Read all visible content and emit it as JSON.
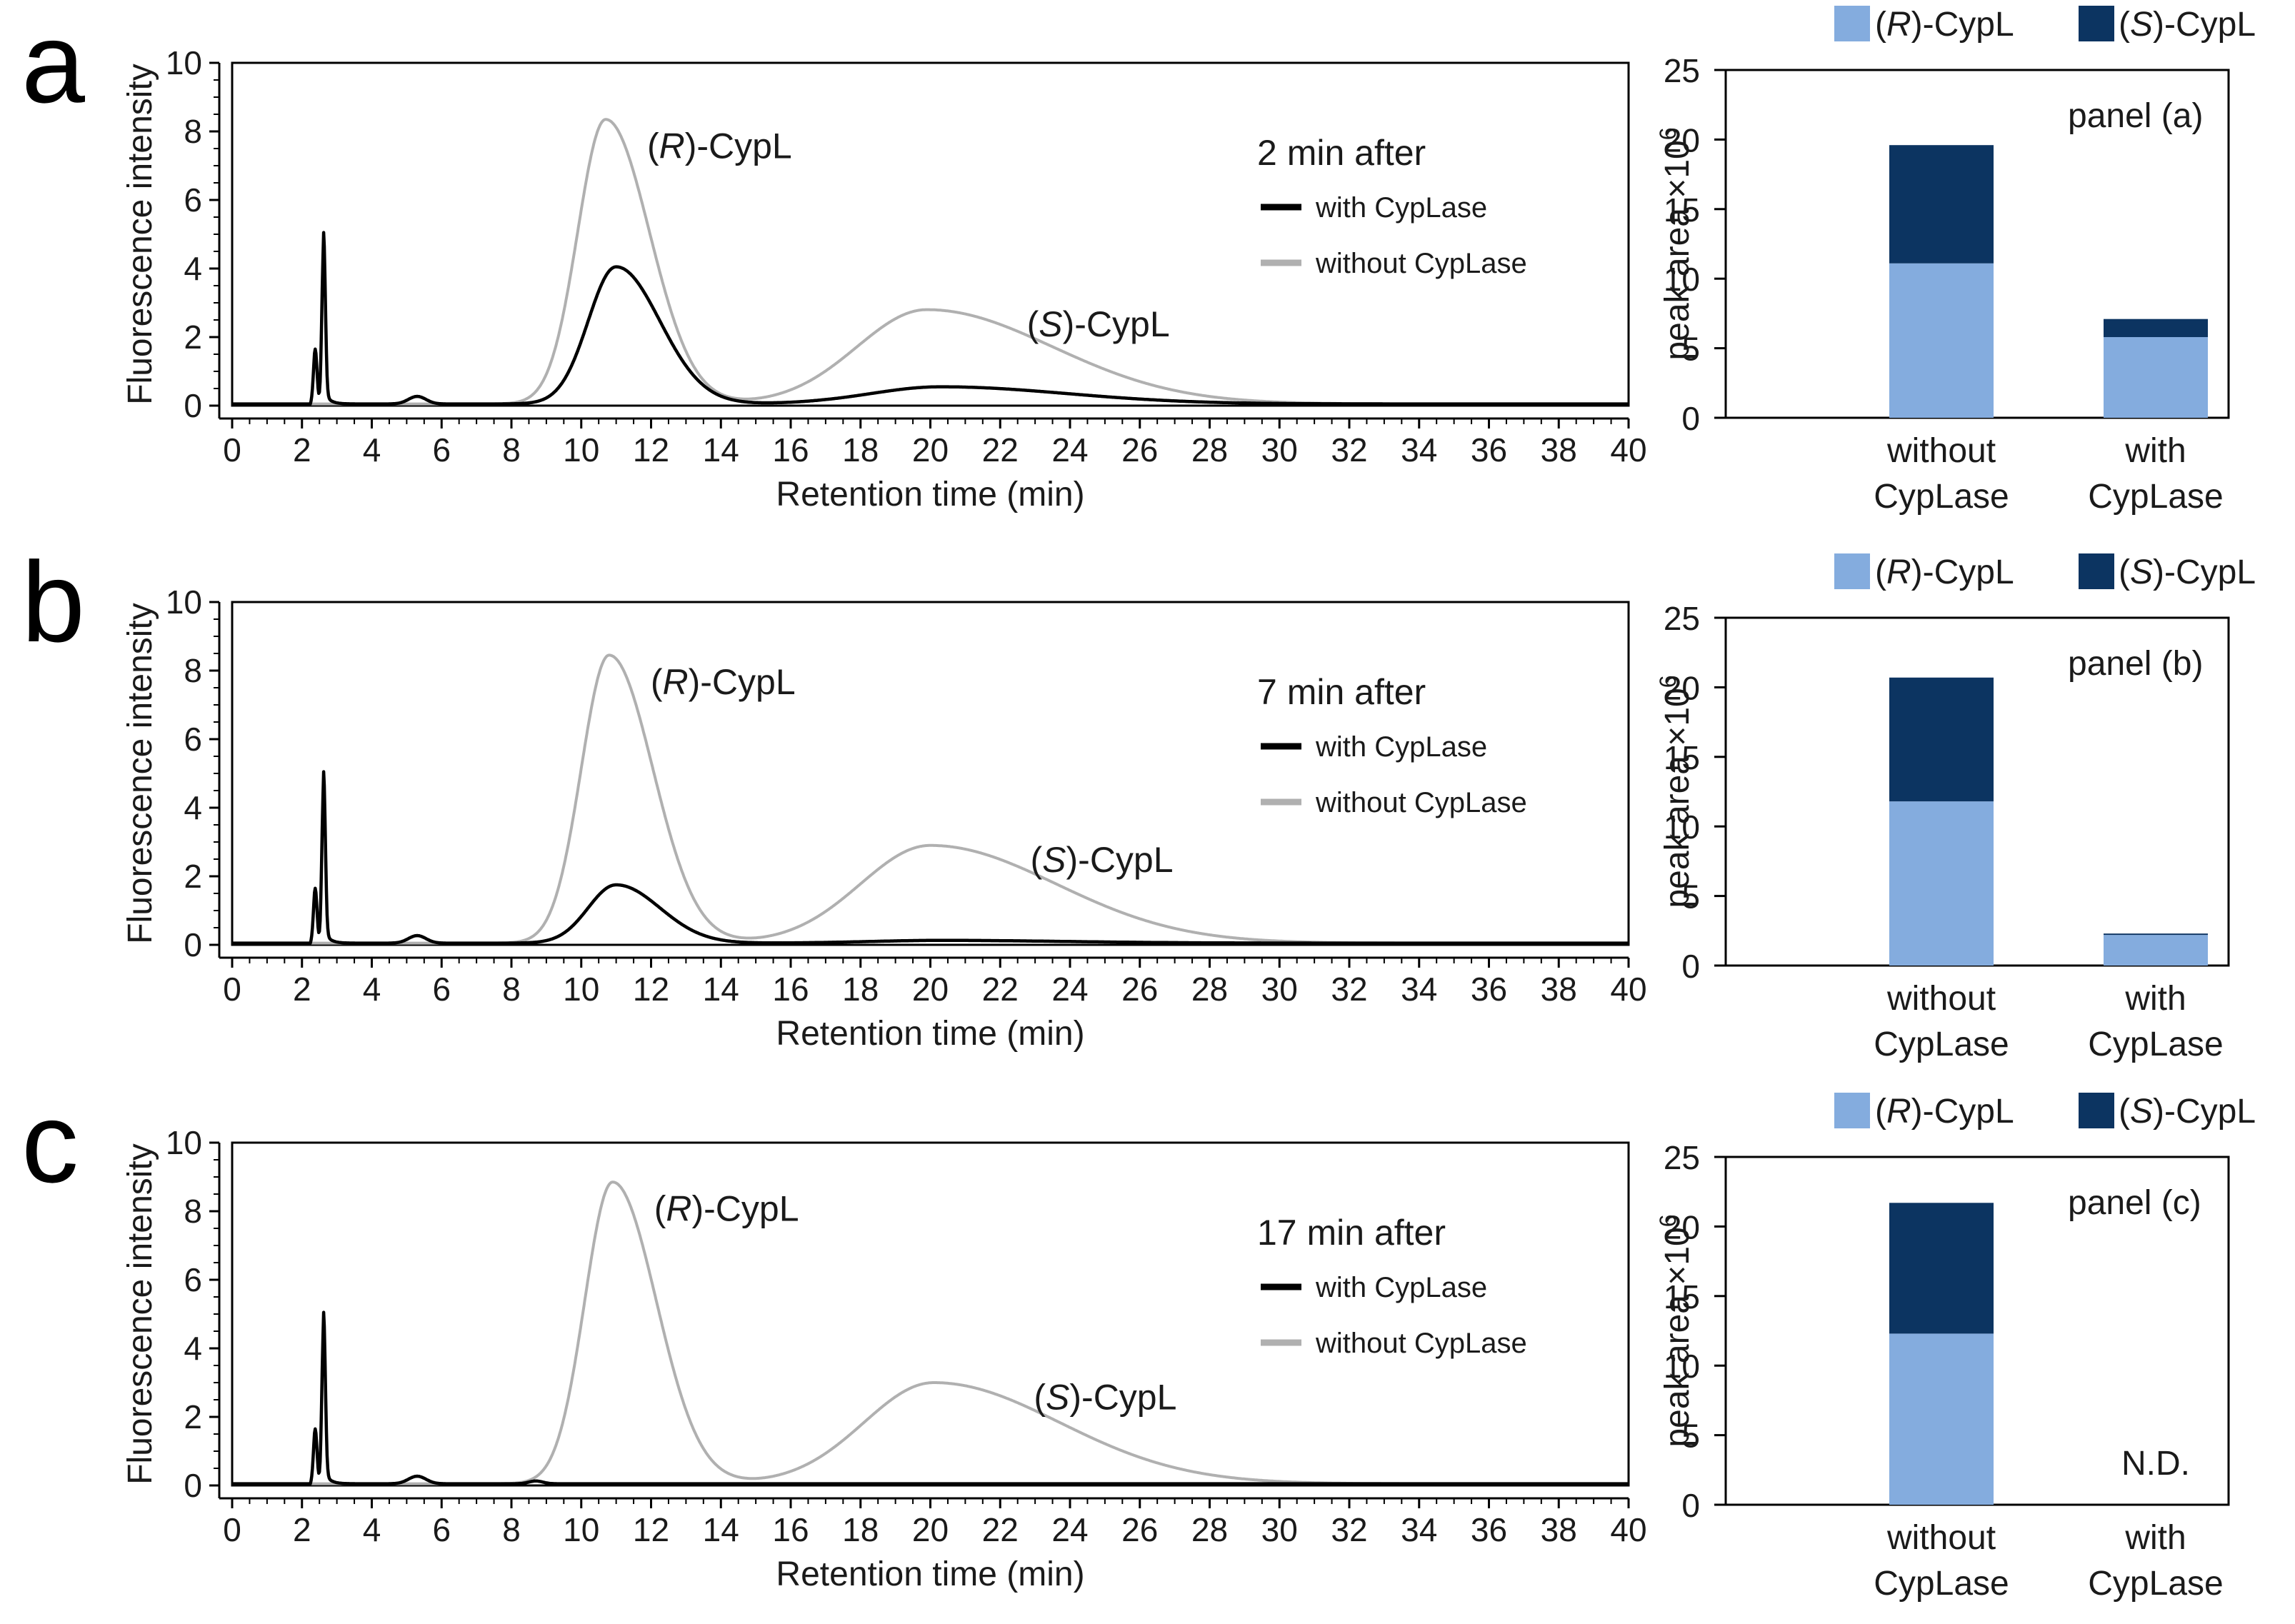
{
  "chromatograms": [
    {
      "letter": "a",
      "condition": "2 min after",
      "r_label": "(R)-CypL",
      "s_label": "(S)-CypL",
      "with_peak_r": 4.0,
      "with_peak_s": 0.5
    },
    {
      "letter": "b",
      "condition": "7 min after",
      "r_label": "(R)-CypL",
      "s_label": "(S)-CypL",
      "with_peak_r": 1.7,
      "with_peak_s": 0.08
    },
    {
      "letter": "c",
      "condition": "17 min after",
      "r_label": "(R)-CypL",
      "s_label": "(S)-CypL",
      "with_peak_r": 0.0,
      "with_peak_s": 0.0
    }
  ],
  "bar_panels": [
    {
      "tag": "panel (a)",
      "nd_label": ""
    },
    {
      "tag": "panel (b)",
      "nd_label": ""
    },
    {
      "tag": "panel (c)",
      "nd_label": "N.D."
    }
  ],
  "chart_data": [
    {
      "type": "line",
      "panel": "a",
      "title": "2 min after",
      "xlabel": "Retention time (min)",
      "ylabel": "Fluorescence intensity",
      "xlim": [
        0,
        40
      ],
      "ylim": [
        0,
        10
      ],
      "x_ticks": [
        0,
        2,
        4,
        6,
        8,
        10,
        12,
        14,
        16,
        18,
        20,
        22,
        24,
        26,
        28,
        30,
        32,
        34,
        36,
        38,
        40
      ],
      "y_ticks": [
        0,
        2,
        4,
        6,
        8,
        10
      ],
      "series": [
        {
          "name": "with CypLase",
          "color": "#000000",
          "peaks": [
            {
              "x": 11.0,
              "y": 4.0
            },
            {
              "x": 20.3,
              "y": 0.5
            }
          ]
        },
        {
          "name": "without CypLase",
          "color": "#b0b0b0",
          "peaks": [
            {
              "x": 10.7,
              "y": 8.3
            },
            {
              "x": 19.9,
              "y": 2.75
            }
          ]
        }
      ],
      "annotations": [
        "(R)-CypL",
        "(S)-CypL"
      ]
    },
    {
      "type": "line",
      "panel": "b",
      "title": "7 min after",
      "xlabel": "Retention time (min)",
      "ylabel": "Fluorescence intensity",
      "xlim": [
        0,
        40
      ],
      "ylim": [
        0,
        10
      ],
      "x_ticks": [
        0,
        2,
        4,
        6,
        8,
        10,
        12,
        14,
        16,
        18,
        20,
        22,
        24,
        26,
        28,
        30,
        32,
        34,
        36,
        38,
        40
      ],
      "y_ticks": [
        0,
        2,
        4,
        6,
        8,
        10
      ],
      "series": [
        {
          "name": "with CypLase",
          "color": "#000000",
          "peaks": [
            {
              "x": 11.0,
              "y": 1.7
            },
            {
              "x": 20.3,
              "y": 0.08
            }
          ]
        },
        {
          "name": "without CypLase",
          "color": "#b0b0b0",
          "peaks": [
            {
              "x": 10.8,
              "y": 8.4
            },
            {
              "x": 20.0,
              "y": 2.85
            }
          ]
        }
      ],
      "annotations": [
        "(R)-CypL",
        "(S)-CypL"
      ]
    },
    {
      "type": "line",
      "panel": "c",
      "title": "17 min after",
      "xlabel": "Retention time (min)",
      "ylabel": "Fluorescence intensity",
      "xlim": [
        0,
        40
      ],
      "ylim": [
        0,
        10
      ],
      "x_ticks": [
        0,
        2,
        4,
        6,
        8,
        10,
        12,
        14,
        16,
        18,
        20,
        22,
        24,
        26,
        28,
        30,
        32,
        34,
        36,
        38,
        40
      ],
      "y_ticks": [
        0,
        2,
        4,
        6,
        8,
        10
      ],
      "series": [
        {
          "name": "with CypLase",
          "color": "#000000",
          "peaks": []
        },
        {
          "name": "without CypLase",
          "color": "#b0b0b0",
          "peaks": [
            {
              "x": 10.9,
              "y": 8.8
            },
            {
              "x": 20.1,
              "y": 2.95
            }
          ]
        }
      ],
      "annotations": [
        "(R)-CypL",
        "(S)-CypL"
      ]
    },
    {
      "type": "bar",
      "stacked": true,
      "panel": "a",
      "title": "panel (a)",
      "ylabel": "peak area ×10^6",
      "ylim": [
        0,
        25
      ],
      "y_ticks": [
        0,
        5,
        10,
        15,
        20,
        25
      ],
      "categories": [
        "without CypLase",
        "with CypLase"
      ],
      "series": [
        {
          "name": "(R)-CypL",
          "color": "#84acde",
          "values": [
            11.1,
            5.8
          ]
        },
        {
          "name": "(S)-CypL",
          "color": "#0c3461",
          "values": [
            8.5,
            1.3
          ]
        }
      ]
    },
    {
      "type": "bar",
      "stacked": true,
      "panel": "b",
      "title": "panel (b)",
      "ylabel": "peak area ×10^6",
      "ylim": [
        0,
        25
      ],
      "y_ticks": [
        0,
        5,
        10,
        15,
        20,
        25
      ],
      "categories": [
        "without CypLase",
        "with CypLase"
      ],
      "series": [
        {
          "name": "(R)-CypL",
          "color": "#84acde",
          "values": [
            11.8,
            2.2
          ]
        },
        {
          "name": "(S)-CypL",
          "color": "#0c3461",
          "values": [
            8.9,
            0.1
          ]
        }
      ]
    },
    {
      "type": "bar",
      "stacked": true,
      "panel": "c",
      "title": "panel (c)",
      "ylabel": "peak area ×10^6",
      "ylim": [
        0,
        25
      ],
      "y_ticks": [
        0,
        5,
        10,
        15,
        20,
        25
      ],
      "categories": [
        "without CypLase",
        "with CypLase"
      ],
      "series": [
        {
          "name": "(R)-CypL",
          "color": "#84acde",
          "values": [
            12.3,
            0
          ]
        },
        {
          "name": "(S)-CypL",
          "color": "#0c3461",
          "values": [
            9.4,
            0
          ]
        }
      ],
      "annotations": [
        "N.D."
      ]
    }
  ],
  "labels": {
    "x_axis": "Retention time (min)",
    "y_axis": "Fluorescence intensity",
    "with": "with CypLase",
    "without": "without CypLase",
    "bar_y_axis": "peak area ×10",
    "bar_y_exp": "6",
    "cat1_line1": "without",
    "cat1_line2": "CypLase",
    "cat2_line1": "with",
    "cat2_line2": "CypLase",
    "legend_r_pre": "(",
    "legend_r_it": "R",
    "legend_r_post": ")-CypL",
    "legend_s_pre": "(",
    "legend_s_it": "S",
    "legend_s_post": ")-CypL"
  }
}
